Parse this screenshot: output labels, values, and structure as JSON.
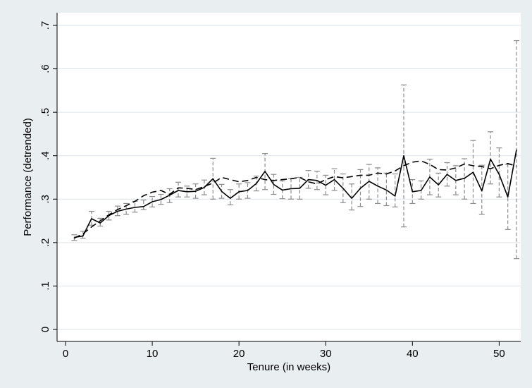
{
  "chart_data": {
    "type": "line",
    "xlabel": "Tenure (in weeks)",
    "ylabel": "Performance (detrended)",
    "xlim": [
      0,
      52.5
    ],
    "ylim": [
      0,
      0.7
    ],
    "x_ticks": [
      0,
      10,
      20,
      30,
      40,
      50
    ],
    "y_ticks": [
      0,
      0.1,
      0.2,
      0.3,
      0.4,
      0.5,
      0.6,
      0.7
    ],
    "y_tick_labels": [
      "0",
      ".1",
      ".2",
      ".3",
      ".4",
      ".5",
      ".6",
      ".7"
    ],
    "grid": "horizontal",
    "colors": {
      "background": "#e9eef1",
      "plot_area": "#ffffff",
      "grid": "#dde3e8",
      "solid": "#000000",
      "dashed": "#000000",
      "error_bar": "#8c8c8c"
    },
    "series": [
      {
        "style": "solid",
        "x": [
          1,
          2,
          3,
          4,
          5,
          6,
          7,
          8,
          9,
          10,
          11,
          12,
          13,
          14,
          15,
          16,
          17,
          18,
          19,
          20,
          21,
          22,
          23,
          24,
          25,
          26,
          27,
          28,
          29,
          30,
          31,
          32,
          33,
          34,
          35,
          36,
          37,
          38,
          39,
          40,
          41,
          42,
          43,
          44,
          45,
          46,
          47,
          48,
          49,
          50,
          51,
          52
        ],
        "y": [
          0.212,
          0.215,
          0.255,
          0.245,
          0.262,
          0.272,
          0.277,
          0.281,
          0.283,
          0.294,
          0.299,
          0.309,
          0.32,
          0.317,
          0.318,
          0.327,
          0.347,
          0.318,
          0.302,
          0.317,
          0.32,
          0.336,
          0.364,
          0.334,
          0.321,
          0.324,
          0.325,
          0.345,
          0.343,
          0.332,
          0.345,
          0.325,
          0.302,
          0.325,
          0.341,
          0.33,
          0.321,
          0.307,
          0.4,
          0.317,
          0.32,
          0.351,
          0.333,
          0.357,
          0.343,
          0.348,
          0.362,
          0.319,
          0.392,
          0.357,
          0.305,
          0.414
        ]
      },
      {
        "style": "dashed",
        "x": [
          1,
          2,
          3,
          4,
          5,
          6,
          7,
          8,
          9,
          10,
          11,
          12,
          13,
          14,
          15,
          16,
          17,
          18,
          19,
          20,
          21,
          22,
          23,
          24,
          25,
          26,
          27,
          28,
          29,
          30,
          31,
          32,
          33,
          34,
          35,
          36,
          37,
          38,
          39,
          40,
          41,
          42,
          43,
          44,
          45,
          46,
          47,
          48,
          49,
          50,
          51,
          52
        ],
        "y": [
          0.21,
          0.22,
          0.236,
          0.25,
          0.264,
          0.276,
          0.285,
          0.295,
          0.308,
          0.316,
          0.32,
          0.311,
          0.326,
          0.325,
          0.322,
          0.329,
          0.337,
          0.35,
          0.345,
          0.34,
          0.343,
          0.35,
          0.345,
          0.343,
          0.345,
          0.347,
          0.35,
          0.34,
          0.335,
          0.345,
          0.352,
          0.349,
          0.352,
          0.355,
          0.355,
          0.36,
          0.358,
          0.365,
          0.377,
          0.385,
          0.388,
          0.38,
          0.368,
          0.367,
          0.372,
          0.381,
          0.377,
          0.375,
          0.37,
          0.378,
          0.382,
          0.376
        ]
      }
    ],
    "error_bars": {
      "x": [
        1,
        2,
        3,
        4,
        5,
        6,
        7,
        8,
        9,
        10,
        11,
        12,
        13,
        14,
        15,
        16,
        17,
        18,
        19,
        20,
        21,
        22,
        23,
        24,
        25,
        26,
        27,
        28,
        29,
        30,
        31,
        32,
        33,
        34,
        35,
        36,
        37,
        38,
        39,
        40,
        41,
        42,
        43,
        44,
        45,
        46,
        47,
        48,
        49,
        50,
        51,
        52
      ],
      "low": [
        0.205,
        0.21,
        0.24,
        0.238,
        0.252,
        0.262,
        0.265,
        0.27,
        0.276,
        0.282,
        0.288,
        0.292,
        0.305,
        0.305,
        0.302,
        0.31,
        0.3,
        0.302,
        0.287,
        0.3,
        0.302,
        0.319,
        0.322,
        0.311,
        0.301,
        0.3,
        0.3,
        0.325,
        0.322,
        0.31,
        0.32,
        0.292,
        0.275,
        0.283,
        0.3,
        0.29,
        0.285,
        0.282,
        0.236,
        0.29,
        0.3,
        0.31,
        0.305,
        0.33,
        0.31,
        0.3,
        0.29,
        0.265,
        0.335,
        0.305,
        0.23,
        0.163
      ],
      "high": [
        0.218,
        0.226,
        0.272,
        0.256,
        0.272,
        0.284,
        0.29,
        0.295,
        0.298,
        0.306,
        0.311,
        0.324,
        0.339,
        0.33,
        0.335,
        0.344,
        0.394,
        0.334,
        0.322,
        0.335,
        0.338,
        0.353,
        0.405,
        0.357,
        0.342,
        0.347,
        0.35,
        0.366,
        0.364,
        0.355,
        0.37,
        0.358,
        0.335,
        0.368,
        0.38,
        0.372,
        0.36,
        0.358,
        0.563,
        0.345,
        0.342,
        0.392,
        0.36,
        0.384,
        0.377,
        0.393,
        0.435,
        0.378,
        0.455,
        0.418,
        0.38,
        0.665
      ]
    }
  }
}
